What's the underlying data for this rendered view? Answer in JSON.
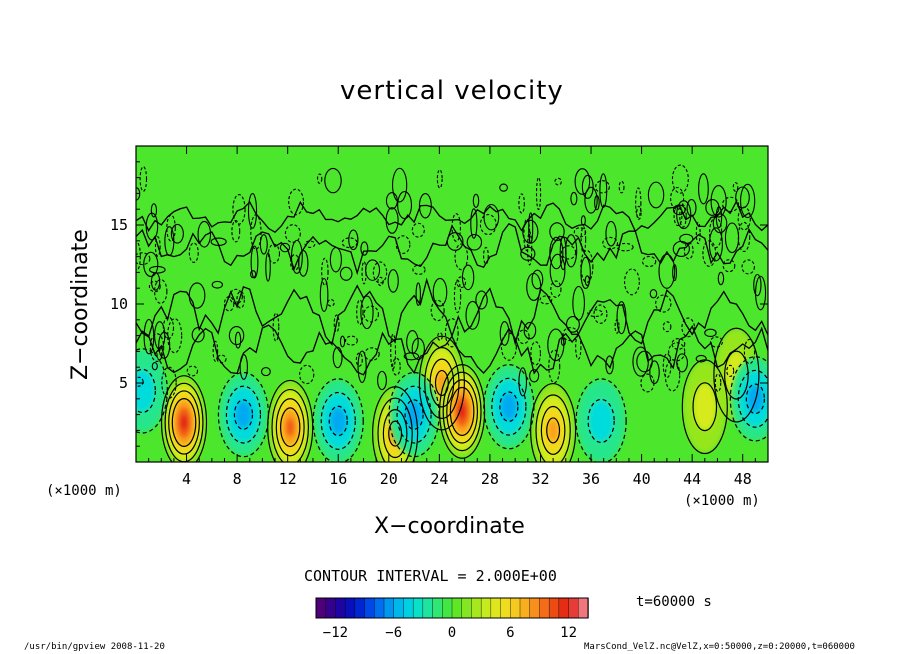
{
  "chart_data": {
    "type": "heatmap",
    "title": "vertical velocity",
    "xlabel": "X−coordinate",
    "ylabel": "Z−coordinate",
    "x_unit_label": "(×1000 m)",
    "xlim": [
      0,
      50
    ],
    "ylim": [
      0,
      20
    ],
    "x_ticks": [
      4,
      8,
      12,
      16,
      20,
      24,
      28,
      32,
      36,
      40,
      44,
      48
    ],
    "y_ticks": [
      5,
      10,
      15
    ],
    "contour_interval_label": "CONTOUR INTERVAL = 2.000E+00",
    "time_label": "t=60000 s",
    "colorbar": {
      "min": -14,
      "max": 14,
      "ticks": [
        -12,
        -6,
        0,
        6,
        12
      ]
    },
    "features": [
      {
        "x": 3.8,
        "z": 2.5,
        "value": 12
      },
      {
        "x": 12.2,
        "z": 2.2,
        "value": 10
      },
      {
        "x": 20.5,
        "z": 1.8,
        "value": 7
      },
      {
        "x": 24.2,
        "z": 5.0,
        "value": 8
      },
      {
        "x": 25.8,
        "z": 3.2,
        "value": 11
      },
      {
        "x": 33.0,
        "z": 2.0,
        "value": 7
      },
      {
        "x": 47.5,
        "z": 5.5,
        "value": 4
      },
      {
        "x": 45.0,
        "z": 3.5,
        "value": 4
      },
      {
        "x": 8.5,
        "z": 3.0,
        "value": -6
      },
      {
        "x": 16.0,
        "z": 2.6,
        "value": -5
      },
      {
        "x": 22.0,
        "z": 3.0,
        "value": -5
      },
      {
        "x": 29.5,
        "z": 3.5,
        "value": -5
      },
      {
        "x": 36.8,
        "z": 2.6,
        "value": -4
      },
      {
        "x": 49.0,
        "z": 4.0,
        "value": -5
      },
      {
        "x": 0.5,
        "z": 4.5,
        "value": -4
      }
    ]
  },
  "footer": {
    "left": "/usr/bin/gpview  2008-11-20",
    "right": "MarsCond_VelZ.nc@VelZ,x=0:50000,z=0:20000,t=060000"
  }
}
